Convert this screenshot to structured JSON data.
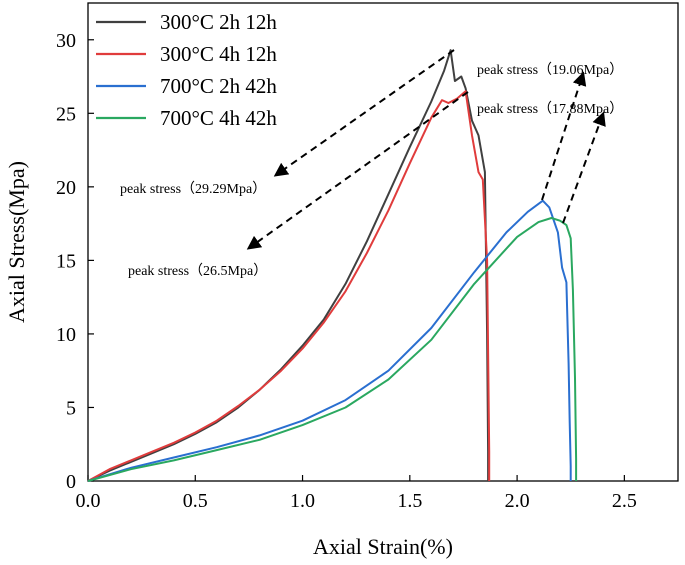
{
  "chart_data": {
    "type": "line",
    "xlabel": "Axial Strain(%)",
    "ylabel": "Axial Stress(Mpa)",
    "xlim": [
      0,
      2.75
    ],
    "ylim": [
      0,
      32.5
    ],
    "xticks": [
      0.0,
      0.5,
      1.0,
      1.5,
      2.0,
      2.5
    ],
    "xtick_labels": [
      "0.0",
      "0.5",
      "1.0",
      "1.5",
      "2.0",
      "2.5"
    ],
    "yticks": [
      0,
      5,
      10,
      15,
      20,
      25,
      30
    ],
    "ytick_labels": [
      "0",
      "5",
      "10",
      "15",
      "20",
      "25",
      "30"
    ],
    "legend_position": "top-left",
    "series": [
      {
        "name": "300°C 2h 12h",
        "color": "#404040",
        "x": [
          0,
          0.1,
          0.2,
          0.3,
          0.4,
          0.5,
          0.6,
          0.7,
          0.8,
          0.9,
          1.0,
          1.1,
          1.2,
          1.3,
          1.4,
          1.5,
          1.6,
          1.66,
          1.69,
          1.71,
          1.74,
          1.76,
          1.79,
          1.82,
          1.85,
          1.86,
          1.865,
          1.865
        ],
        "y": [
          0,
          0.7,
          1.3,
          1.9,
          2.5,
          3.2,
          4.0,
          5.0,
          6.2,
          7.6,
          9.2,
          11.0,
          13.4,
          16.3,
          19.5,
          22.7,
          25.8,
          27.9,
          29.29,
          27.2,
          27.5,
          26.7,
          24.5,
          23.5,
          21.0,
          10.0,
          2.0,
          0
        ]
      },
      {
        "name": "300°C 4h 12h",
        "color": "#e03c3c",
        "x": [
          0,
          0.1,
          0.2,
          0.3,
          0.4,
          0.5,
          0.6,
          0.7,
          0.8,
          0.9,
          1.0,
          1.1,
          1.2,
          1.3,
          1.4,
          1.5,
          1.6,
          1.65,
          1.68,
          1.72,
          1.76,
          1.79,
          1.82,
          1.84,
          1.86,
          1.87,
          1.87
        ],
        "y": [
          0,
          0.8,
          1.4,
          2.0,
          2.6,
          3.3,
          4.1,
          5.1,
          6.2,
          7.5,
          9.0,
          10.8,
          12.9,
          15.5,
          18.4,
          21.6,
          24.7,
          25.9,
          25.7,
          26.0,
          26.5,
          23.5,
          21.0,
          20.5,
          15.0,
          2.0,
          0
        ]
      },
      {
        "name": "700°C 2h 42h",
        "color": "#2a6fd0",
        "x": [
          0,
          0.2,
          0.4,
          0.6,
          0.8,
          1.0,
          1.2,
          1.4,
          1.6,
          1.8,
          1.95,
          2.05,
          2.12,
          2.15,
          2.19,
          2.21,
          2.23,
          2.24,
          2.245,
          2.25,
          2.25
        ],
        "y": [
          0,
          0.9,
          1.6,
          2.3,
          3.1,
          4.1,
          5.5,
          7.5,
          10.4,
          14.2,
          16.9,
          18.3,
          19.06,
          18.6,
          16.9,
          14.5,
          13.5,
          8.0,
          4.0,
          1.0,
          0
        ]
      },
      {
        "name": "700°C 4h 42h",
        "color": "#2aa860",
        "x": [
          0,
          0.2,
          0.4,
          0.6,
          0.8,
          1.0,
          1.2,
          1.4,
          1.6,
          1.8,
          2.0,
          2.1,
          2.16,
          2.2,
          2.23,
          2.25,
          2.26,
          2.27,
          2.275,
          2.275
        ],
        "y": [
          0,
          0.8,
          1.4,
          2.1,
          2.8,
          3.8,
          5.0,
          6.9,
          9.6,
          13.4,
          16.6,
          17.6,
          17.88,
          17.7,
          17.4,
          16.5,
          13.0,
          7.0,
          1.5,
          0
        ]
      }
    ],
    "annotations": [
      {
        "text": "peak stress（29.29Mpa）",
        "color": "#000000"
      },
      {
        "text": "peak stress（26.5Mpa）",
        "color": "#000000"
      },
      {
        "text": "peak stress（19.06Mpa）",
        "color": "#000000"
      },
      {
        "text": "peak stress（17.88Mpa）",
        "color": "#000000"
      }
    ]
  }
}
